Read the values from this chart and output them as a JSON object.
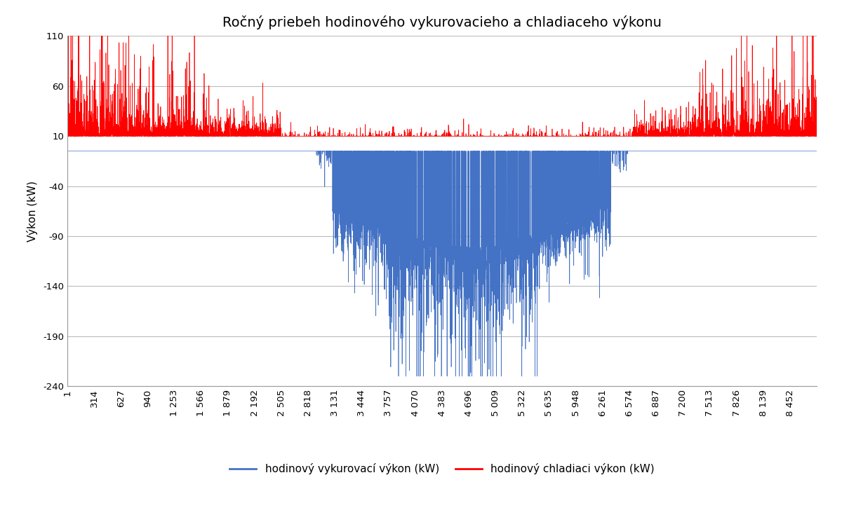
{
  "title": "Ročný priebeh hodinového vykurovacieho a chladiaceho výkonu",
  "ylabel": "Výkon (kW)",
  "xlim": [
    1,
    8760
  ],
  "ylim": [
    -240,
    110
  ],
  "yticks": [
    -240,
    -190,
    -140,
    -90,
    -40,
    10,
    60,
    110
  ],
  "xtick_labels": [
    "1",
    "314",
    "627",
    "940",
    "1 253",
    "1 566",
    "1 879",
    "2 192",
    "2 505",
    "2 818",
    "3 131",
    "3 444",
    "3 757",
    "4 070",
    "4 383",
    "4 696",
    "5 009",
    "5 322",
    "5 635",
    "5 948",
    "6 261",
    "6 574",
    "6 887",
    "7 200",
    "7 513",
    "7 826",
    "8 139",
    "8 452"
  ],
  "xtick_values": [
    1,
    314,
    627,
    940,
    1253,
    1566,
    1879,
    2192,
    2505,
    2818,
    3131,
    3444,
    3757,
    4070,
    4383,
    4696,
    5009,
    5322,
    5635,
    5948,
    6261,
    6574,
    6887,
    7200,
    7513,
    7826,
    8139,
    8452
  ],
  "legend_blue": "hodinový vykurovací výkon (kW)",
  "legend_red": "hodinový chladiaci výkon (kW)",
  "blue_color": "#4472C4",
  "red_color": "#FF0000",
  "background_color": "#FFFFFF",
  "grid_color": "#BBBBBB",
  "title_fontsize": 14,
  "axis_label_fontsize": 11,
  "tick_fontsize": 9.5,
  "legend_fontsize": 11,
  "heating_flat": -5,
  "cooling_base": 10,
  "summer_start": 3100,
  "summer_end": 6350,
  "deep_start": 3700,
  "deep_end": 5500
}
